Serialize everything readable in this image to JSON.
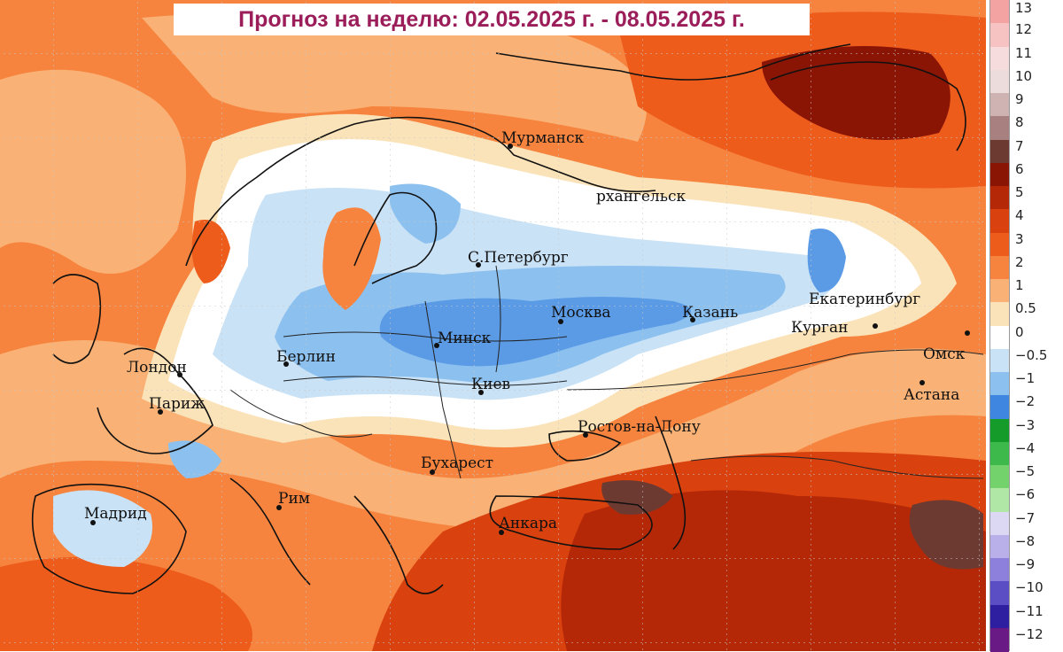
{
  "title": "Прогноз на неделю: 02.05.2025 г. - 08.05.2025 г.",
  "cities": [
    {
      "id": "murmansk",
      "name": "Мурманск"
    },
    {
      "id": "arkhangelsk",
      "name": "рхангельск"
    },
    {
      "id": "st-petersburg",
      "name": "С.Петербург"
    },
    {
      "id": "moscow",
      "name": "Москва"
    },
    {
      "id": "kazan",
      "name": "Казань"
    },
    {
      "id": "yekaterinburg",
      "name": "Екатеринбург"
    },
    {
      "id": "kurgan",
      "name": "Курган"
    },
    {
      "id": "omsk",
      "name": "Омск"
    },
    {
      "id": "astana",
      "name": "Астана"
    },
    {
      "id": "minsk",
      "name": "Минск"
    },
    {
      "id": "kiev",
      "name": "Киев"
    },
    {
      "id": "berlin",
      "name": "Берлин"
    },
    {
      "id": "london",
      "name": "Лондон"
    },
    {
      "id": "paris",
      "name": "Париж"
    },
    {
      "id": "rostov",
      "name": "Ростов-на-Дону"
    },
    {
      "id": "bucharest",
      "name": "Бухарест"
    },
    {
      "id": "rome",
      "name": "Рим"
    },
    {
      "id": "madrid",
      "name": "Мадрид"
    },
    {
      "id": "ankara",
      "name": "Анкара"
    }
  ],
  "legend": {
    "labels": [
      "13",
      "12",
      "11",
      "10",
      "9",
      "8",
      "7",
      "6",
      "5",
      "4",
      "3",
      "2",
      "1",
      "0.5",
      "0",
      "−0.5",
      "−1",
      "−2",
      "−3",
      "−4",
      "−5",
      "−6",
      "−7",
      "−8",
      "−9",
      "−10",
      "−11",
      "−12"
    ],
    "colors": [
      "#f4a3a3",
      "#f7c2c2",
      "#f6dcdc",
      "#ecdcdc",
      "#cfb3b3",
      "#a88080",
      "#6d3a32",
      "#8a1505",
      "#b42808",
      "#d9410e",
      "#ee5c1c",
      "#f6843e",
      "#f9b175",
      "#fbe3b9",
      "#ffffff",
      "#c9e2f6",
      "#8cc0ef",
      "#3f86e0",
      "#159b2a",
      "#3cb94a",
      "#74d26d",
      "#b0e6a6",
      "#dcd8f4",
      "#b9b0ea",
      "#8c80dc",
      "#5b4dc4",
      "#2e1fa0",
      "#6a1a84"
    ]
  }
}
